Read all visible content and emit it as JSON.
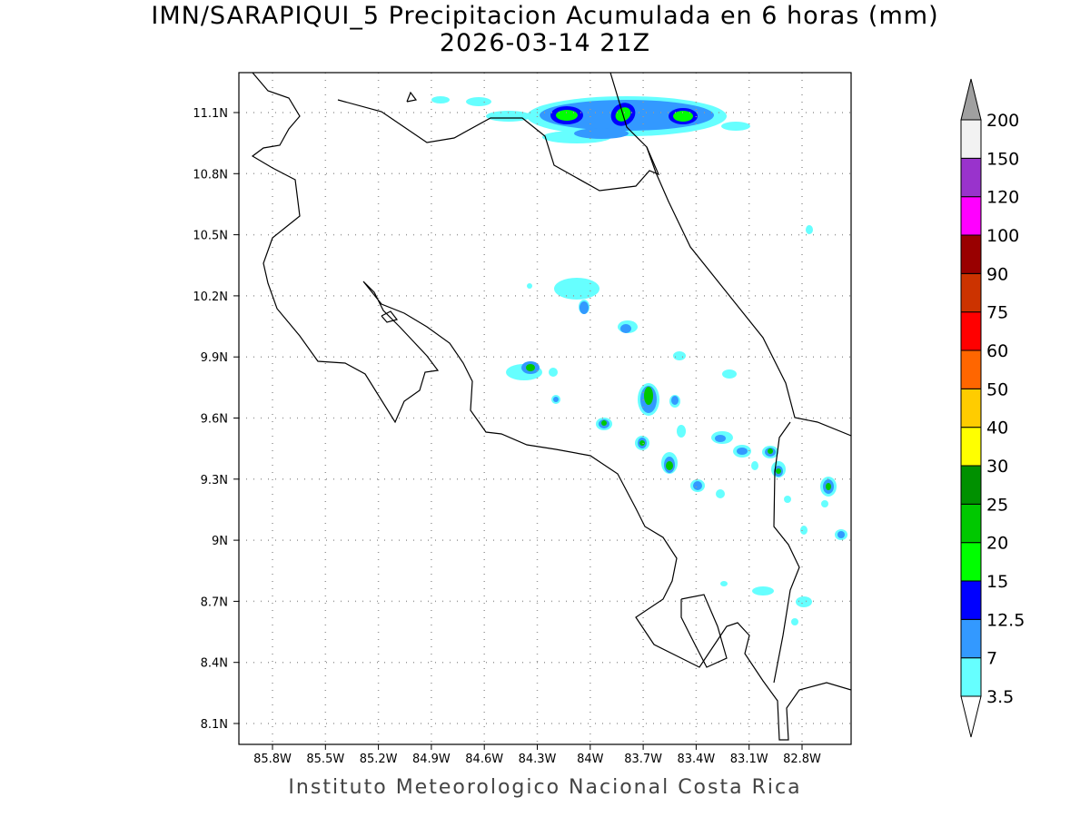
{
  "title_line1": "IMN/SARAPIQUI_5 Precipitacion Acumulada en 6 horas (mm)",
  "title_line2": "2026-03-14 21Z",
  "footer": "Instituto Meteorologico Nacional Costa Rica",
  "lon_ticks": [
    "85.8W",
    "85.5W",
    "85.2W",
    "84.9W",
    "84.6W",
    "84.3W",
    "84W",
    "83.7W",
    "83.4W",
    "83.1W",
    "82.8W"
  ],
  "lat_ticks": [
    "11.1N",
    "10.8N",
    "10.5N",
    "10.2N",
    "9.9N",
    "9.6N",
    "9.3N",
    "9N",
    "8.7N",
    "8.4N",
    "8.1N"
  ],
  "colorbar": {
    "labels": [
      "3.5",
      "7",
      "12.5",
      "15",
      "20",
      "25",
      "30",
      "40",
      "50",
      "60",
      "75",
      "90",
      "100",
      "120",
      "150",
      "200"
    ],
    "colors": [
      "#66ffff",
      "#3399ff",
      "#0000ff",
      "#00ff00",
      "#00c800",
      "#009000",
      "#ffff00",
      "#ffcc00",
      "#ff6600",
      "#ff0000",
      "#cc3300",
      "#990000",
      "#ff00ff",
      "#9933cc",
      "#f2f2f2"
    ],
    "over_color": "#a0a0a0"
  }
}
